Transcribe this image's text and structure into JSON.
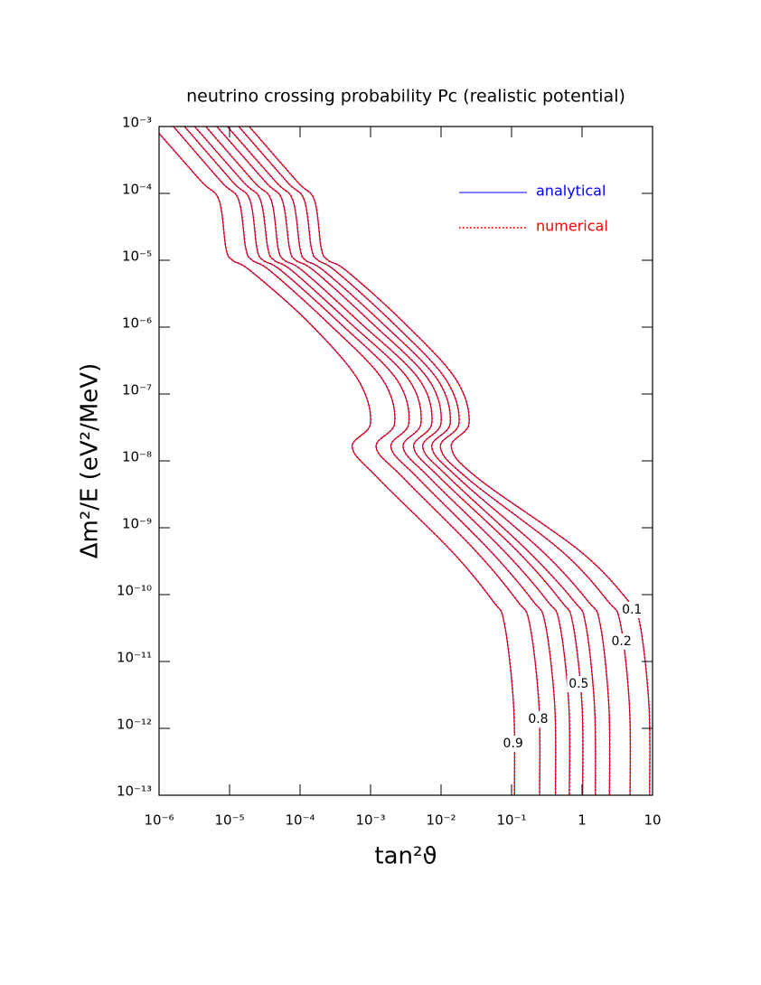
{
  "chart_data": {
    "type": "contour",
    "title": "neutrino crossing probability Pc  (realistic potential)",
    "x_label": "tan²ϑ",
    "y_label": "Δm²/E  (eV²/MeV)",
    "x_scale": "log",
    "y_scale": "log",
    "xlim": [
      1e-06,
      10
    ],
    "ylim": [
      1e-13,
      0.001
    ],
    "xticks": [
      {
        "value": 1e-06,
        "label": "10⁻⁶"
      },
      {
        "value": 1e-05,
        "label": "10⁻⁵"
      },
      {
        "value": 0.0001,
        "label": "10⁻⁴"
      },
      {
        "value": 0.001,
        "label": "10⁻³"
      },
      {
        "value": 0.01,
        "label": "10⁻²"
      },
      {
        "value": 0.1,
        "label": "10⁻¹"
      },
      1,
      10
    ],
    "yticks": [
      {
        "value": 1e-13,
        "label": "10⁻¹³"
      },
      {
        "value": 1e-12,
        "label": "10⁻¹²"
      },
      {
        "value": 1e-11,
        "label": "10⁻¹¹"
      },
      {
        "value": 1e-10,
        "label": "10⁻¹⁰"
      },
      {
        "value": 1e-09,
        "label": "10⁻⁹"
      },
      {
        "value": 1e-08,
        "label": "10⁻⁸"
      },
      {
        "value": 1e-07,
        "label": "10⁻⁷"
      },
      {
        "value": 1e-06,
        "label": "10⁻⁶"
      },
      {
        "value": 1e-05,
        "label": "10⁻⁵"
      },
      {
        "value": 0.0001,
        "label": "10⁻⁴"
      },
      {
        "value": 0.001,
        "label": "10⁻³"
      }
    ],
    "legend": "upper right",
    "series": [
      {
        "name": "analytical",
        "color": "#0000ff",
        "dash": "solid"
      },
      {
        "name": "numerical",
        "color": "#ff0000",
        "dash": "dotted"
      }
    ],
    "contours": [
      {
        "label": "0.9",
        "x": [
          1e-06,
          4e-06,
          7.1e-06,
          8.9e-06,
          1.1e-05,
          2e-05,
          0.00013,
          0.00065,
          0.001,
          0.00055,
          0.0013,
          0.014,
          0.054,
          0.079,
          0.107,
          0.11
        ],
        "y": [
          0.00079,
          0.00015,
          7.9e-05,
          1.5e-05,
          1e-05,
          6.9e-06,
          1.2e-06,
          1.7e-07,
          3.7e-08,
          1.6e-08,
          5.4e-09,
          4.5e-10,
          8.1e-11,
          3.7e-11,
          2.2e-12,
          1e-13
        ]
      },
      {
        "label": "0.8",
        "x": [
          1.6e-06,
          7.6e-06,
          1.35e-05,
          1.7e-05,
          2.1e-05,
          3.8e-05,
          0.00024,
          0.00145,
          0.0022,
          0.0012,
          0.003,
          0.031,
          0.12,
          0.18,
          0.245,
          0.25
        ],
        "y": [
          0.001,
          0.00015,
          7.9e-05,
          1.5e-05,
          1e-05,
          6.9e-06,
          1.2e-06,
          1.7e-07,
          3.7e-08,
          1.6e-08,
          5.4e-09,
          4.5e-10,
          8.1e-11,
          3.7e-11,
          2.2e-12,
          1e-13
        ]
      },
      {
        "x": [
          2.3e-06,
          1.1e-05,
          1.95e-05,
          2.45e-05,
          3e-05,
          5.5e-05,
          0.00035,
          0.0023,
          0.0035,
          0.00195,
          0.0048,
          0.05,
          0.2,
          0.3,
          0.41,
          0.42
        ],
        "y": [
          0.001,
          0.00015,
          7.9e-05,
          1.5e-05,
          1e-05,
          6.9e-06,
          1.2e-06,
          1.7e-07,
          3.7e-08,
          1.6e-08,
          5.4e-09,
          4.5e-10,
          8.1e-11,
          3.7e-11,
          2.2e-12,
          1e-13
        ]
      },
      {
        "x": [
          3.2e-06,
          1.55e-05,
          2.75e-05,
          3.5e-05,
          4.3e-05,
          7.8e-05,
          0.00049,
          0.0034,
          0.0052,
          0.0029,
          0.0071,
          0.078,
          0.32,
          0.48,
          0.65,
          0.66
        ],
        "y": [
          0.001,
          0.00015,
          7.9e-05,
          1.5e-05,
          1e-05,
          6.9e-06,
          1.2e-06,
          1.7e-07,
          3.7e-08,
          1.6e-08,
          5.4e-09,
          4.5e-10,
          8.1e-11,
          3.7e-11,
          2.2e-12,
          1e-13
        ]
      },
      {
        "label": "0.5",
        "x": [
          4.6e-06,
          2.2e-05,
          3.9e-05,
          4.9e-05,
          6e-05,
          0.00011,
          0.00069,
          0.0048,
          0.0074,
          0.0041,
          0.01,
          0.12,
          0.5,
          0.74,
          1.0,
          1.02
        ],
        "y": [
          0.001,
          0.00015,
          7.9e-05,
          1.5e-05,
          1e-05,
          6.9e-06,
          1.2e-06,
          1.7e-07,
          3.7e-08,
          1.6e-08,
          5.4e-09,
          4.5e-10,
          8.1e-11,
          3.7e-11,
          2.2e-12,
          1e-13
        ]
      },
      {
        "x": [
          6.6e-06,
          3.2e-05,
          5.6e-05,
          7.1e-05,
          8.7e-05,
          0.00016,
          0.001,
          0.0065,
          0.01,
          0.0055,
          0.0135,
          0.17,
          0.76,
          1.12,
          1.5,
          1.55
        ],
        "y": [
          0.001,
          0.00015,
          7.9e-05,
          1.5e-05,
          1e-05,
          6.9e-06,
          1.2e-06,
          1.7e-07,
          3.7e-08,
          1.6e-08,
          5.4e-09,
          4.5e-10,
          8.1e-11,
          3.7e-11,
          2.2e-12,
          1e-13
        ]
      },
      {
        "x": [
          9.3e-06,
          4.5e-05,
          7.9e-05,
          0.0001,
          0.00012,
          0.00022,
          0.0014,
          0.0087,
          0.0135,
          0.0074,
          0.018,
          0.27,
          1.2,
          1.8,
          2.4,
          2.45
        ],
        "y": [
          0.001,
          0.00015,
          7.9e-05,
          1.5e-05,
          1e-05,
          6.9e-06,
          1.2e-06,
          1.7e-07,
          3.7e-08,
          1.6e-08,
          5.4e-09,
          4.5e-10,
          8.1e-11,
          3.7e-11,
          2.2e-12,
          1e-13
        ]
      },
      {
        "label": "0.2",
        "x": [
          1.35e-05,
          6.5e-05,
          0.000115,
          0.000145,
          0.00018,
          0.00032,
          0.002,
          0.0115,
          0.018,
          0.0098,
          0.024,
          0.51,
          2.3,
          3.5,
          4.7,
          4.8
        ],
        "y": [
          0.001,
          0.00015,
          7.9e-05,
          1.5e-05,
          1e-05,
          6.9e-06,
          1.2e-06,
          1.7e-07,
          3.7e-08,
          1.6e-08,
          5.4e-09,
          4.5e-10,
          8.1e-11,
          3.7e-11,
          2.2e-12,
          1e-13
        ]
      },
      {
        "label": "0.1",
        "x": [
          1.9e-05,
          9.1e-05,
          0.00016,
          0.0002,
          0.00025,
          0.00046,
          0.0029,
          0.016,
          0.025,
          0.014,
          0.034,
          0.93,
          4.5,
          6.6,
          8.9,
          9.1
        ],
        "y": [
          0.001,
          0.00015,
          7.9e-05,
          1.5e-05,
          1e-05,
          6.9e-06,
          1.2e-06,
          1.7e-07,
          3.7e-08,
          1.6e-08,
          5.4e-09,
          4.5e-10,
          8.1e-11,
          3.7e-11,
          2.2e-12,
          1e-13
        ]
      }
    ]
  }
}
